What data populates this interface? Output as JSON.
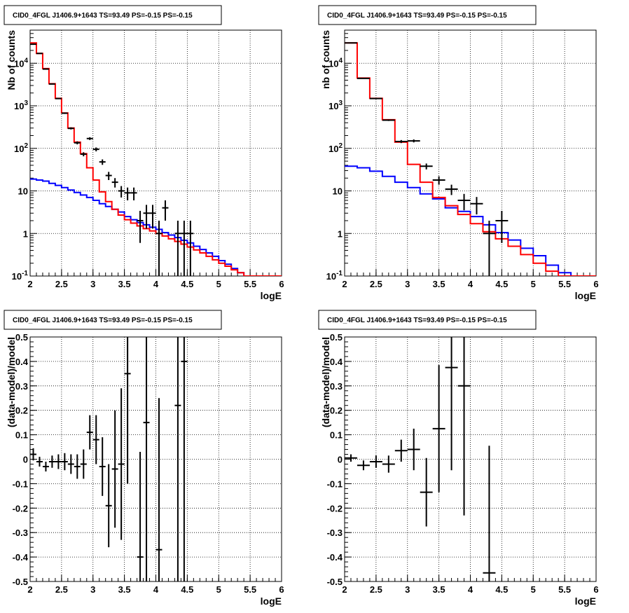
{
  "chart_data": [
    {
      "type": "line",
      "title": "CID0_4FGL J1406.9+1643 TS=93.49 PS=-0.15 PS=-0.15",
      "xlabel": "logE",
      "ylabel": "Nb of counts",
      "xlim": [
        2,
        6
      ],
      "ylim": [
        0.1,
        60000
      ],
      "yscale": "log",
      "grid": true,
      "x_ticks": [
        "2",
        "2.5",
        "3",
        "3.5",
        "4",
        "4.5",
        "5",
        "5.5",
        "6"
      ],
      "y_ticks": [
        "10^-1",
        "1",
        "10",
        "10^2",
        "10^3",
        "10^4"
      ],
      "bin_edges": [
        2.0,
        2.1,
        2.2,
        2.3,
        2.4,
        2.5,
        2.6,
        2.7,
        2.8,
        2.9,
        3.0,
        3.1,
        3.2,
        3.3,
        3.4,
        3.5,
        3.6,
        3.7,
        3.8,
        3.9,
        4.0,
        4.1,
        4.2,
        4.3,
        4.4,
        4.5,
        4.6,
        4.7,
        4.8,
        4.9,
        5.0,
        5.1,
        5.2,
        5.3,
        5.4,
        5.5,
        5.6,
        5.7,
        5.8,
        5.9,
        6.0
      ],
      "series": [
        {
          "color": "#ff0000",
          "values": [
            30000,
            17000,
            7500,
            3300,
            1500,
            680,
            300,
            140,
            75,
            35,
            18,
            9.5,
            5.6,
            3.7,
            2.7,
            2.1,
            1.75,
            1.5,
            1.3,
            1.15,
            1.0,
            0.87,
            0.75,
            0.65,
            0.56,
            0.48,
            0.41,
            0.35,
            0.29,
            0.24,
            0.2,
            0.17,
            0.14,
            0.12,
            0.1,
            0.09,
            0.09,
            0.09,
            0.09,
            0.09
          ]
        },
        {
          "color": "#0000ff",
          "values": [
            19,
            18,
            17,
            15,
            13.5,
            12,
            10.5,
            9.2,
            8.0,
            7.0,
            6.0,
            5.0,
            4.3,
            3.7,
            3.2,
            2.5,
            2.1,
            1.8,
            1.6,
            1.4,
            1.25,
            1.05,
            0.92,
            0.8,
            0.69,
            0.6,
            0.5,
            0.42,
            0.35,
            0.29,
            0.23,
            0.19,
            0.15,
            0.12,
            0.1,
            0.09,
            0.09,
            0.09,
            0.09,
            0.09
          ]
        }
      ],
      "points": [
        {
          "x": 2.05,
          "y": 28000,
          "ylo": 27500,
          "yhi": 28500
        },
        {
          "x": 2.15,
          "y": 17000,
          "ylo": 16800,
          "yhi": 17200
        },
        {
          "x": 2.25,
          "y": 7300,
          "ylo": 7200,
          "yhi": 7400
        },
        {
          "x": 2.35,
          "y": 3250,
          "ylo": 3200,
          "yhi": 3300
        },
        {
          "x": 2.45,
          "y": 1480,
          "ylo": 1440,
          "yhi": 1520
        },
        {
          "x": 2.55,
          "y": 670,
          "ylo": 645,
          "yhi": 695
        },
        {
          "x": 2.65,
          "y": 295,
          "ylo": 278,
          "yhi": 312
        },
        {
          "x": 2.75,
          "y": 135,
          "ylo": 124,
          "yhi": 146
        },
        {
          "x": 2.85,
          "y": 73,
          "ylo": 65,
          "yhi": 81
        },
        {
          "x": 2.95,
          "y": 170,
          "ylo": 157,
          "yhi": 183
        },
        {
          "x": 3.05,
          "y": 95,
          "ylo": 85,
          "yhi": 105
        },
        {
          "x": 3.15,
          "y": 48,
          "ylo": 41,
          "yhi": 55
        },
        {
          "x": 3.25,
          "y": 23,
          "ylo": 18,
          "yhi": 28
        },
        {
          "x": 3.35,
          "y": 16,
          "ylo": 12,
          "yhi": 20
        },
        {
          "x": 3.45,
          "y": 10,
          "ylo": 7,
          "yhi": 13
        },
        {
          "x": 3.55,
          "y": 9,
          "ylo": 6,
          "yhi": 12
        },
        {
          "x": 3.65,
          "y": 9,
          "ylo": 6,
          "yhi": 12
        },
        {
          "x": 3.75,
          "y": 2,
          "ylo": 0.6,
          "yhi": 3.4
        },
        {
          "x": 3.85,
          "y": 3,
          "ylo": 1.3,
          "yhi": 4.7
        },
        {
          "x": 3.95,
          "y": 3,
          "ylo": 1.3,
          "yhi": 4.7
        },
        {
          "x": 4.05,
          "y": 1,
          "ylo": 0.1,
          "yhi": 2
        },
        {
          "x": 4.15,
          "y": 4,
          "ylo": 2,
          "yhi": 6
        },
        {
          "x": 4.35,
          "y": 1,
          "ylo": 0.1,
          "yhi": 2
        },
        {
          "x": 4.45,
          "y": 1,
          "ylo": 0.1,
          "yhi": 2
        },
        {
          "x": 4.55,
          "y": 1,
          "ylo": 0.1,
          "yhi": 2
        }
      ]
    },
    {
      "type": "line",
      "title": "CID0_4FGL J1406.9+1643 TS=93.49 PS=-0.15 PS=-0.15",
      "xlabel": "logE",
      "ylabel": "nb of counts",
      "xlim": [
        2,
        6
      ],
      "ylim": [
        0.1,
        60000
      ],
      "yscale": "log",
      "grid": true,
      "x_ticks": [
        "2",
        "2.5",
        "3",
        "3.5",
        "4",
        "4.5",
        "5",
        "5.5",
        "6"
      ],
      "y_ticks": [
        "10^-1",
        "1",
        "10",
        "10^2",
        "10^3",
        "10^4"
      ],
      "bin_edges": [
        2.0,
        2.2,
        2.4,
        2.6,
        2.8,
        3.0,
        3.2,
        3.4,
        3.6,
        3.8,
        4.0,
        4.2,
        4.4,
        4.6,
        4.8,
        5.0,
        5.2,
        5.4,
        5.6,
        5.8,
        6.0
      ],
      "series": [
        {
          "color": "#ff0000",
          "values": [
            30000,
            4500,
            1500,
            470,
            140,
            42,
            16,
            7,
            4.5,
            2.8,
            1.7,
            1.1,
            0.75,
            0.5,
            0.32,
            0.2,
            0.13,
            0.09,
            0.09,
            0.09
          ]
        },
        {
          "color": "#0000ff",
          "values": [
            38,
            35,
            29,
            22,
            16,
            12,
            8.5,
            6.5,
            4.0,
            3.3,
            2.5,
            1.6,
            1.05,
            0.7,
            0.45,
            0.3,
            0.18,
            0.12,
            0.08,
            0.08
          ]
        }
      ],
      "points": [
        {
          "x": 2.1,
          "y": 30000,
          "ylo": 29600,
          "yhi": 30400
        },
        {
          "x": 2.3,
          "y": 4400,
          "ylo": 4300,
          "yhi": 4500
        },
        {
          "x": 2.5,
          "y": 1480,
          "ylo": 1440,
          "yhi": 1520
        },
        {
          "x": 2.7,
          "y": 460,
          "ylo": 440,
          "yhi": 480
        },
        {
          "x": 2.9,
          "y": 145,
          "ylo": 133,
          "yhi": 157
        },
        {
          "x": 3.1,
          "y": 150,
          "ylo": 138,
          "yhi": 162
        },
        {
          "x": 3.3,
          "y": 38,
          "ylo": 32,
          "yhi": 44
        },
        {
          "x": 3.5,
          "y": 18,
          "ylo": 14,
          "yhi": 22
        },
        {
          "x": 3.7,
          "y": 11,
          "ylo": 8,
          "yhi": 14
        },
        {
          "x": 3.9,
          "y": 6,
          "ylo": 3.5,
          "yhi": 8.5
        },
        {
          "x": 4.1,
          "y": 5,
          "ylo": 2.8,
          "yhi": 7.2
        },
        {
          "x": 4.3,
          "y": 1,
          "ylo": 0.1,
          "yhi": 2
        },
        {
          "x": 4.5,
          "y": 2,
          "ylo": 0.6,
          "yhi": 3.4
        }
      ]
    },
    {
      "type": "scatter",
      "title": "CID0_4FGL J1406.9+1643 TS=93.49 PS=-0.15 PS=-0.15",
      "xlabel": "logE",
      "ylabel": "(data-model)/model",
      "xlim": [
        2,
        6
      ],
      "ylim": [
        -0.5,
        0.5
      ],
      "grid": true,
      "x_ticks": [
        "2",
        "2.5",
        "3",
        "3.5",
        "4",
        "4.5",
        "5",
        "5.5",
        "6"
      ],
      "y_ticks": [
        "-0.5",
        "-0.4",
        "-0.3",
        "-0.2",
        "-0.1",
        "0",
        "0.1",
        "0.2",
        "0.3",
        "0.4",
        "0.5"
      ],
      "points": [
        {
          "x": 2.05,
          "y": 0.02,
          "err": 0.025,
          "xerr": 0.05
        },
        {
          "x": 2.15,
          "y": -0.01,
          "err": 0.02,
          "xerr": 0.05
        },
        {
          "x": 2.25,
          "y": -0.03,
          "err": 0.02,
          "xerr": 0.05
        },
        {
          "x": 2.35,
          "y": -0.01,
          "err": 0.025,
          "xerr": 0.05
        },
        {
          "x": 2.45,
          "y": -0.01,
          "err": 0.03,
          "xerr": 0.05
        },
        {
          "x": 2.55,
          "y": -0.01,
          "err": 0.035,
          "xerr": 0.05
        },
        {
          "x": 2.65,
          "y": -0.02,
          "err": 0.04,
          "xerr": 0.05
        },
        {
          "x": 2.75,
          "y": -0.03,
          "err": 0.05,
          "xerr": 0.05
        },
        {
          "x": 2.85,
          "y": -0.02,
          "err": 0.06,
          "xerr": 0.05
        },
        {
          "x": 2.95,
          "y": 0.11,
          "err": 0.07,
          "xerr": 0.05
        },
        {
          "x": 3.05,
          "y": 0.08,
          "err": 0.1,
          "xerr": 0.05
        },
        {
          "x": 3.15,
          "y": -0.03,
          "err": 0.12,
          "xerr": 0.05
        },
        {
          "x": 3.25,
          "y": -0.19,
          "err": 0.17,
          "xerr": 0.05
        },
        {
          "x": 3.35,
          "y": -0.04,
          "err": 0.24,
          "xerr": 0.05
        },
        {
          "x": 3.45,
          "y": -0.02,
          "err": 0.31,
          "xerr": 0.05
        },
        {
          "x": 3.55,
          "y": 0.35,
          "err": 0.45,
          "xerr": 0.05
        },
        {
          "x": 3.75,
          "y": -0.4,
          "err": 0.43,
          "xerr": 0.05
        },
        {
          "x": 3.85,
          "y": 0.15,
          "err": 0.7,
          "xerr": 0.05
        },
        {
          "x": 4.05,
          "y": -0.37,
          "err": 0.62,
          "xerr": 0.05
        },
        {
          "x": 4.35,
          "y": 0.22,
          "err": 0.8,
          "xerr": 0.05
        },
        {
          "x": 4.45,
          "y": 0.4,
          "err": 0.9,
          "xerr": 0.05
        }
      ]
    },
    {
      "type": "scatter",
      "title": "CID0_4FGL J1406.9+1643 TS=93.49 PS=-0.15 PS=-0.15",
      "xlabel": "logE",
      "ylabel": "(data-model)/model",
      "xlim": [
        2,
        6
      ],
      "ylim": [
        -0.5,
        0.5
      ],
      "grid": true,
      "x_ticks": [
        "2",
        "2.5",
        "3",
        "3.5",
        "4",
        "4.5",
        "5",
        "5.5",
        "6"
      ],
      "y_ticks": [
        "-0.5",
        "-0.4",
        "-0.3",
        "-0.2",
        "-0.1",
        "0",
        "0.1",
        "0.2",
        "0.3",
        "0.4",
        "0.5"
      ],
      "points": [
        {
          "x": 2.1,
          "y": 0.005,
          "err": 0.015,
          "xerr": 0.1
        },
        {
          "x": 2.3,
          "y": -0.025,
          "err": 0.02,
          "xerr": 0.1
        },
        {
          "x": 2.5,
          "y": -0.01,
          "err": 0.025,
          "xerr": 0.1
        },
        {
          "x": 2.7,
          "y": -0.02,
          "err": 0.035,
          "xerr": 0.1
        },
        {
          "x": 2.9,
          "y": 0.035,
          "err": 0.045,
          "xerr": 0.1
        },
        {
          "x": 3.1,
          "y": 0.04,
          "err": 0.085,
          "xerr": 0.1
        },
        {
          "x": 3.3,
          "y": -0.135,
          "err": 0.14,
          "xerr": 0.1
        },
        {
          "x": 3.5,
          "y": 0.125,
          "err": 0.26,
          "xerr": 0.1
        },
        {
          "x": 3.7,
          "y": 0.375,
          "err": 0.42,
          "xerr": 0.1
        },
        {
          "x": 3.9,
          "y": 0.3,
          "err": 0.53,
          "xerr": 0.1
        },
        {
          "x": 4.3,
          "y": -0.465,
          "err": 0.52,
          "xerr": 0.1
        }
      ]
    }
  ]
}
